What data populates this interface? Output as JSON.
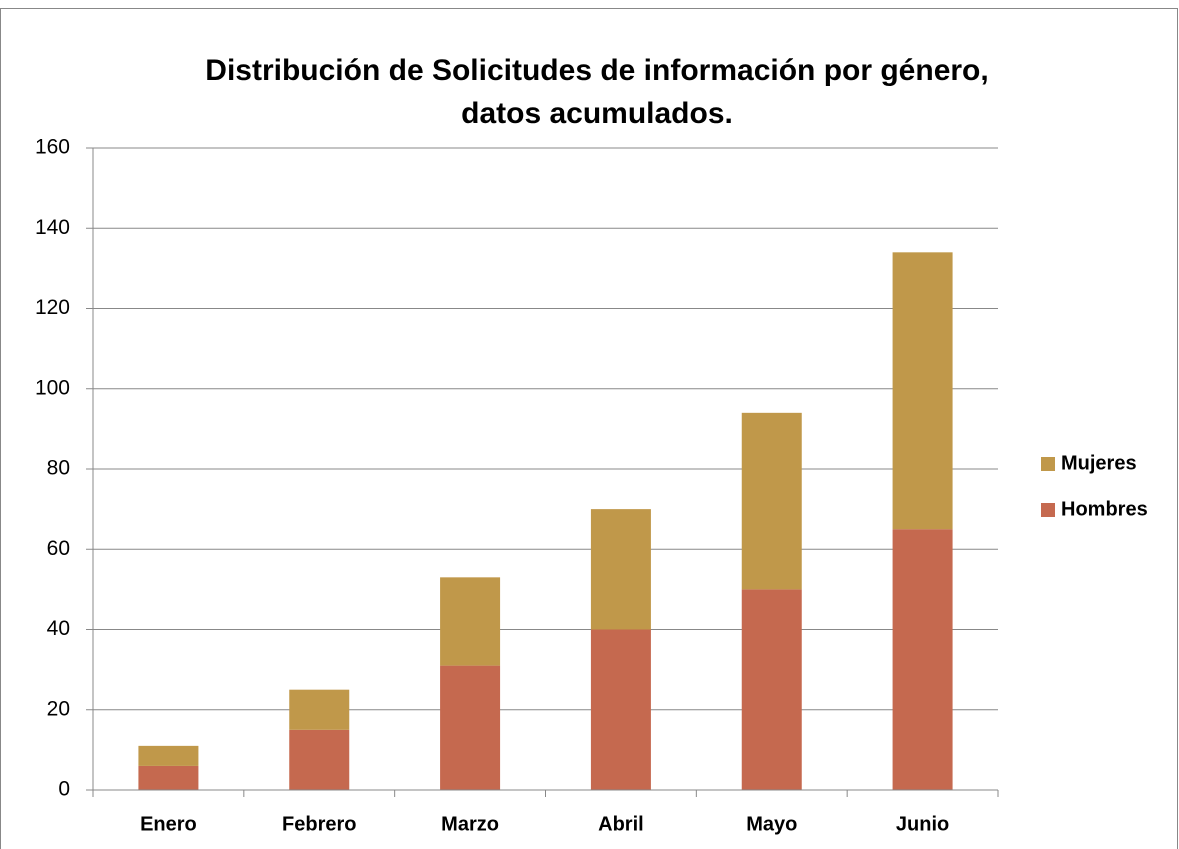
{
  "chart_data": {
    "type": "stacked_bar",
    "title": [
      "Distribución de Solicitudes de información por género,",
      "datos acumulados."
    ],
    "categories": [
      "Enero",
      "Febrero",
      "Marzo",
      "Abril",
      "Mayo",
      "Junio"
    ],
    "series": [
      {
        "name": "Hombres",
        "color": "#c5694f",
        "values": [
          6,
          15,
          31,
          40,
          50,
          65
        ]
      },
      {
        "name": "Mujeres",
        "color": "#c0984a",
        "values": [
          5,
          10,
          22,
          30,
          44,
          69
        ]
      }
    ],
    "ylim": [
      0,
      160
    ],
    "yticks": [
      0,
      20,
      40,
      60,
      80,
      100,
      120,
      140,
      160
    ],
    "grid": true,
    "legend": "right"
  }
}
